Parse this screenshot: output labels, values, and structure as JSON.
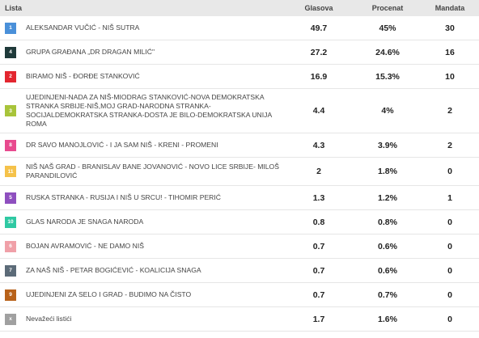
{
  "header": {
    "list": "Lista",
    "votes": "Glasova",
    "percent": "Procenat",
    "seats": "Mandata"
  },
  "rows": [
    {
      "num": "1",
      "color": "#4a90d9",
      "name": "ALEKSANDAR VUČIĆ - NIŠ SUTRA",
      "votes": "49.7",
      "percent": "45%",
      "seats": "30"
    },
    {
      "num": "4",
      "color": "#1f3a3a",
      "name": "GRUPA GRAĐANA „DR DRAGAN MILIĆ\"",
      "votes": "27.2",
      "percent": "24.6%",
      "seats": "16"
    },
    {
      "num": "2",
      "color": "#e3262f",
      "name": "BIRAMO NIŠ - ĐORĐE STANKOVIĆ",
      "votes": "16.9",
      "percent": "15.3%",
      "seats": "10"
    },
    {
      "num": "3",
      "color": "#a8c43a",
      "name": "UJEDINJENI-NADA ZA NIŠ-MIODRAG STANKOVIĆ-NOVA DEMOKRATSKA STRANKA SRBIJE-NIŠ,MOJ GRAD-NARODNA STRANKA-SOCIJALDEMOKRATSKA STRANKA-DOSTA JE BILO-DEMOKRATSKA UNIJA ROMA",
      "votes": "4.4",
      "percent": "4%",
      "seats": "2"
    },
    {
      "num": "8",
      "color": "#e84a8e",
      "name": "DR SAVO MANOJLOVIĆ - I JA SAM NIŠ - KRENI - PROMENI",
      "votes": "4.3",
      "percent": "3.9%",
      "seats": "2"
    },
    {
      "num": "11",
      "color": "#f5c24a",
      "name": "NIŠ NAŠ GRAD - BRANISLAV BANE JOVANOVIĆ - NOVO LICE SRBIJE- MILOŠ PARANDILOVIĆ",
      "votes": "2",
      "percent": "1.8%",
      "seats": "0"
    },
    {
      "num": "5",
      "color": "#8e4fbf",
      "name": "RUSKA STRANKA - RUSIJA I NIŠ U SRCU! - TIHOMIR PERIĆ",
      "votes": "1.3",
      "percent": "1.2%",
      "seats": "1"
    },
    {
      "num": "10",
      "color": "#2fc9a3",
      "name": "GLAS NARODA JE SNAGA NARODA",
      "votes": "0.8",
      "percent": "0.8%",
      "seats": "0"
    },
    {
      "num": "6",
      "color": "#f0a0a8",
      "name": "BOJAN AVRAMOVIĆ - NE DAMO NIŠ",
      "votes": "0.7",
      "percent": "0.6%",
      "seats": "0"
    },
    {
      "num": "7",
      "color": "#5c6b78",
      "name": "ZA NAŠ NIŠ - PETAR BOGIĆEVIĆ - KOALICIJA SNAGA",
      "votes": "0.7",
      "percent": "0.6%",
      "seats": "0"
    },
    {
      "num": "9",
      "color": "#b8621a",
      "name": "UJEDINJENI ZA SELO I GRAD - BUDIMO NA ČISTO",
      "votes": "0.7",
      "percent": "0.7%",
      "seats": "0"
    },
    {
      "num": "x",
      "color": "#a0a0a0",
      "name": "Nevažeći listići",
      "votes": "1.7",
      "percent": "1.6%",
      "seats": "0"
    }
  ]
}
